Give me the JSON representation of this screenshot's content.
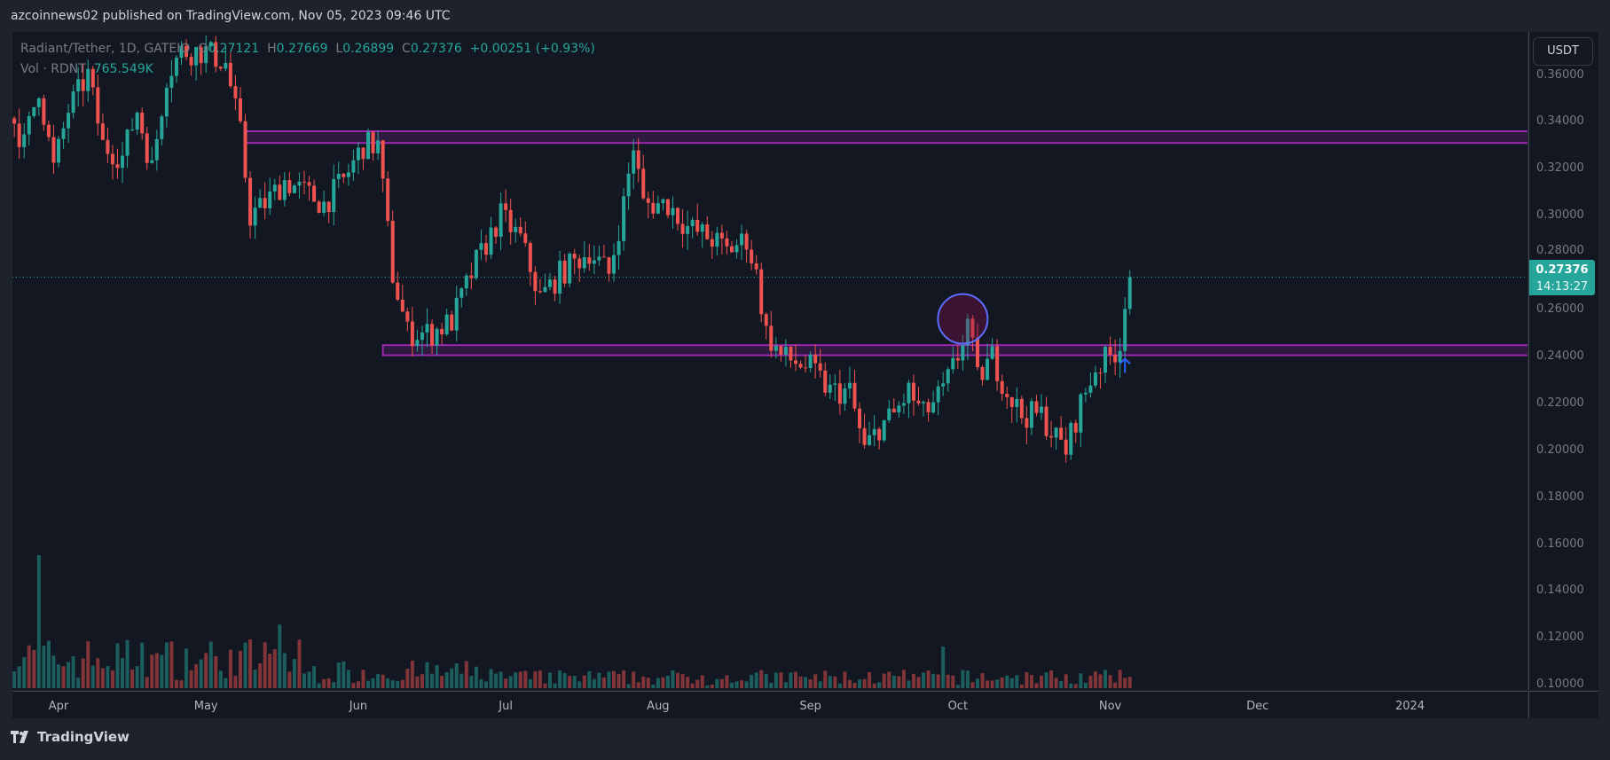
{
  "header": {
    "publish_info": "azcoinnews02 published on TradingView.com, Nov 05, 2023 09:46 UTC"
  },
  "legend": {
    "symbol": "Radiant/Tether, 1D, GATEIO",
    "open_label": "O",
    "open": "0.27121",
    "high_label": "H",
    "high": "0.27669",
    "low_label": "L",
    "low": "0.26899",
    "close_label": "C",
    "close": "0.27376",
    "change": "+0.00251 (+0.93%)",
    "volume_label": "Vol · RDNT",
    "volume": "765.549K"
  },
  "price_axis": {
    "currency": "USDT",
    "ticks": [
      "0.36000",
      "0.34000",
      "0.32000",
      "0.30000",
      "0.28000",
      "0.26000",
      "0.24000",
      "0.22000",
      "0.20000",
      "0.18000",
      "0.16000",
      "0.14000",
      "0.12000",
      "0.10000"
    ],
    "last_price": "0.27376",
    "countdown": "14:13:27"
  },
  "time_axis": {
    "ticks": [
      "Apr",
      "May",
      "Jun",
      "Jul",
      "Aug",
      "Sep",
      "Oct",
      "Nov",
      "Dec",
      "2024"
    ]
  },
  "footer": {
    "brand": "TradingView"
  },
  "colors": {
    "up": "#26a69a",
    "down": "#ef5350",
    "zone": "#9c27b0",
    "background": "#131722",
    "arrow": "#2962ff"
  },
  "chart_data": {
    "type": "candlestick",
    "title": "Radiant/Tether, 1D, GATEIO",
    "ylim": [
      0.1,
      0.37
    ],
    "x_start": "Mar 22, 2023",
    "x_end": "Nov 05, 2023",
    "close_keypoints_day_price": [
      [
        0,
        0.345
      ],
      [
        3,
        0.33
      ],
      [
        6,
        0.355
      ],
      [
        9,
        0.32
      ],
      [
        12,
        0.345
      ],
      [
        16,
        0.36
      ],
      [
        19,
        0.33
      ],
      [
        23,
        0.325
      ],
      [
        26,
        0.345
      ],
      [
        29,
        0.32
      ],
      [
        32,
        0.36
      ],
      [
        35,
        0.37
      ],
      [
        40,
        0.37
      ],
      [
        44,
        0.365
      ],
      [
        47,
        0.335
      ],
      [
        49,
        0.3
      ],
      [
        52,
        0.305
      ],
      [
        56,
        0.315
      ],
      [
        60,
        0.31
      ],
      [
        64,
        0.305
      ],
      [
        68,
        0.315
      ],
      [
        72,
        0.33
      ],
      [
        75,
        0.33
      ],
      [
        78,
        0.275
      ],
      [
        81,
        0.25
      ],
      [
        86,
        0.25
      ],
      [
        90,
        0.255
      ],
      [
        95,
        0.28
      ],
      [
        100,
        0.3
      ],
      [
        104,
        0.29
      ],
      [
        108,
        0.265
      ],
      [
        112,
        0.275
      ],
      [
        118,
        0.285
      ],
      [
        122,
        0.275
      ],
      [
        125,
        0.305
      ],
      [
        127,
        0.33
      ],
      [
        129,
        0.305
      ],
      [
        134,
        0.305
      ],
      [
        138,
        0.295
      ],
      [
        143,
        0.29
      ],
      [
        146,
        0.285
      ],
      [
        150,
        0.29
      ],
      [
        152,
        0.275
      ],
      [
        154,
        0.25
      ],
      [
        157,
        0.24
      ],
      [
        163,
        0.235
      ],
      [
        167,
        0.225
      ],
      [
        171,
        0.225
      ],
      [
        174,
        0.2
      ],
      [
        177,
        0.21
      ],
      [
        180,
        0.215
      ],
      [
        183,
        0.225
      ],
      [
        186,
        0.215
      ],
      [
        190,
        0.225
      ],
      [
        193,
        0.24
      ],
      [
        195,
        0.255
      ],
      [
        197,
        0.23
      ],
      [
        200,
        0.24
      ],
      [
        203,
        0.225
      ],
      [
        206,
        0.215
      ],
      [
        210,
        0.215
      ],
      [
        213,
        0.205
      ],
      [
        215,
        0.2
      ],
      [
        218,
        0.22
      ],
      [
        221,
        0.235
      ],
      [
        224,
        0.24
      ],
      [
        226,
        0.245
      ],
      [
        227,
        0.265
      ],
      [
        228,
        0.27376
      ]
    ],
    "zones": [
      {
        "name": "resistance",
        "low": 0.331,
        "high": 0.336,
        "from_day": 48,
        "to_day": 437
      },
      {
        "name": "support",
        "low": 0.2405,
        "high": 0.2448,
        "from_day": 76,
        "to_day": 436
      }
    ],
    "annotations": [
      {
        "type": "circle",
        "day": 194,
        "price": 0.256
      },
      {
        "type": "arrow-up",
        "day": 227,
        "price": 0.236
      }
    ],
    "current_price": 0.27376
  }
}
